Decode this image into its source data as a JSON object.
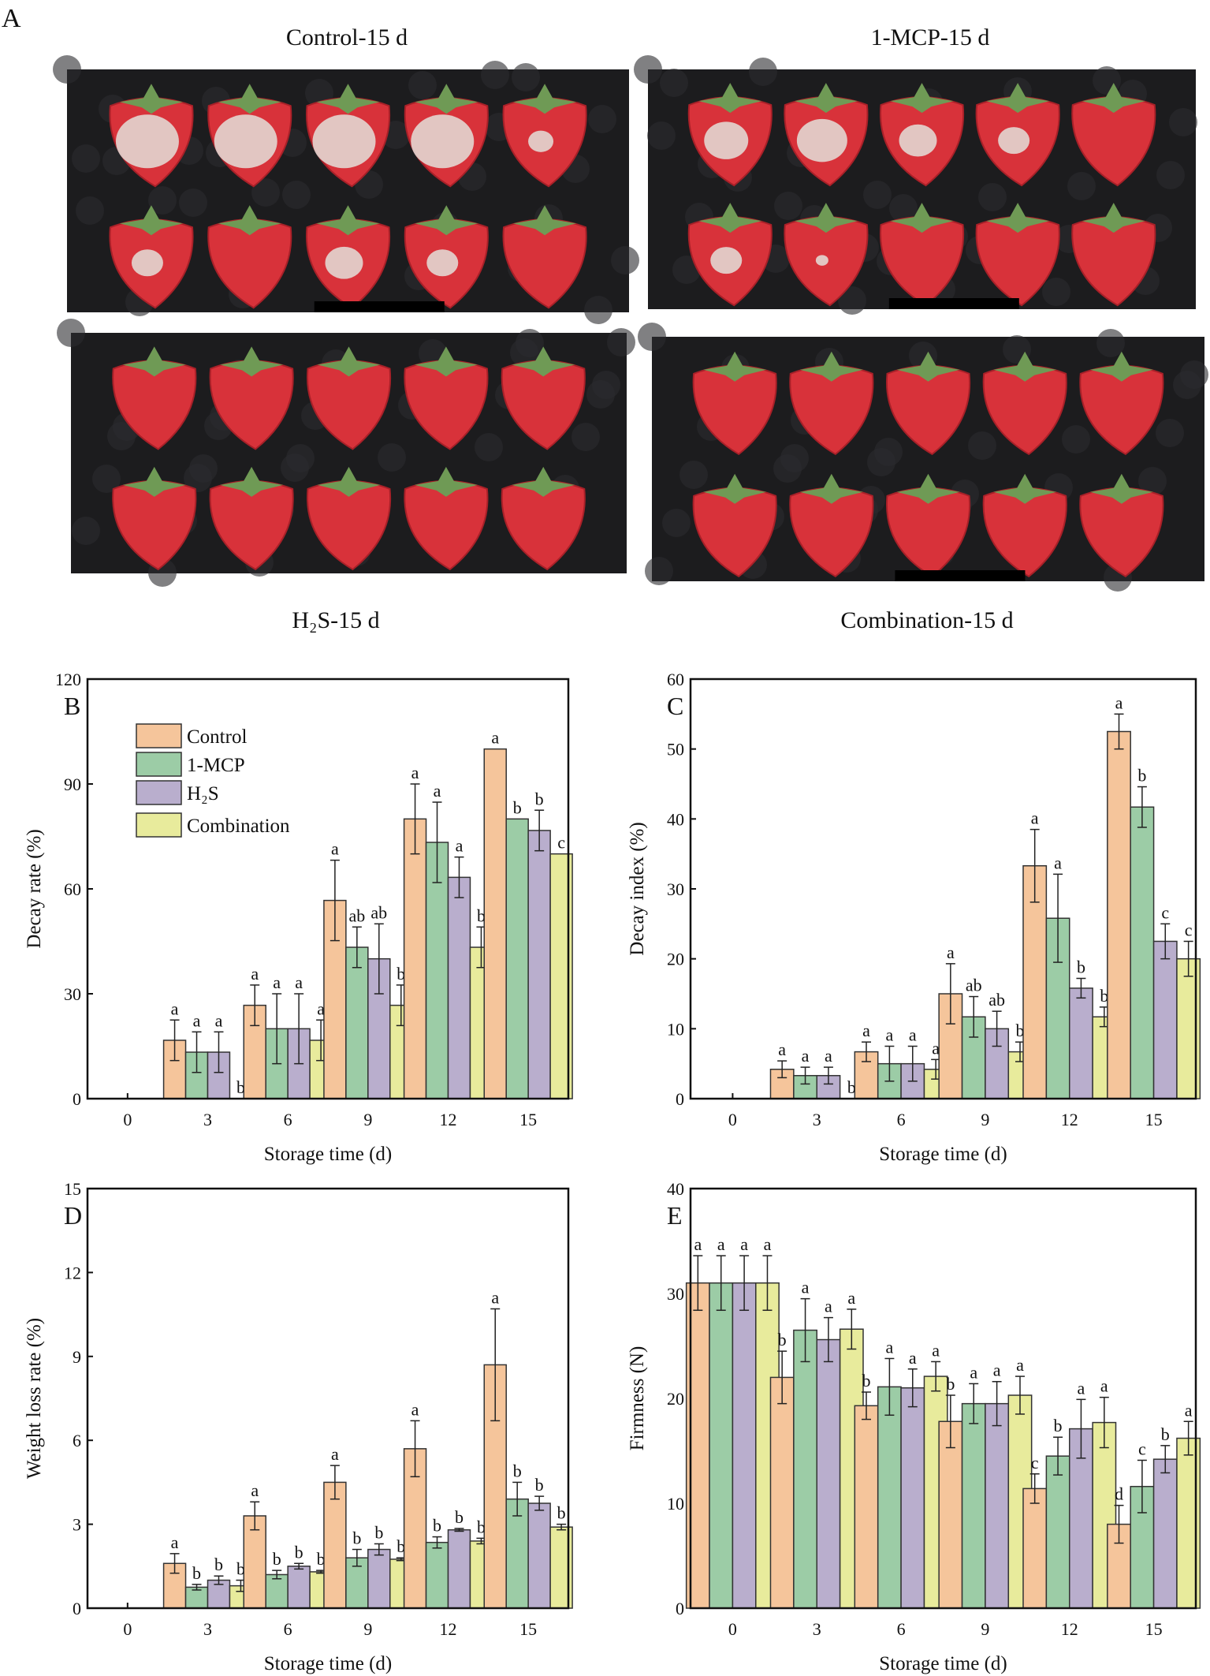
{
  "panel_a": {
    "label": "A",
    "photos": [
      {
        "title": "Control-15 d",
        "mold": [
          1,
          1,
          1,
          1,
          0.4,
          0.5,
          0,
          0.6,
          0.5,
          0
        ],
        "scale_bar": true
      },
      {
        "title": "1-MCP-15 d",
        "mold": [
          0.7,
          0.8,
          0.6,
          0.5,
          0,
          0.5,
          0.2,
          0,
          0,
          0
        ],
        "scale_bar": true
      },
      {
        "title": "H₂S-15 d",
        "mold": [
          0,
          0,
          0,
          0,
          0,
          0,
          0,
          0,
          0,
          0
        ],
        "scale_bar": false
      },
      {
        "title": "Combination-15 d",
        "mold": [
          0,
          0,
          0,
          0,
          0,
          0,
          0,
          0,
          0,
          0
        ],
        "scale_bar": true
      }
    ]
  },
  "legend": {
    "entries": [
      "Control",
      "1-MCP",
      "H₂S",
      "Combination"
    ],
    "colors": [
      "#f5c59b",
      "#9ccca6",
      "#b9aecd",
      "#e8eb9c"
    ]
  },
  "chart_data": [
    {
      "panel": "B",
      "type": "bar",
      "xlabel": "Storage time (d)",
      "ylabel": "Decay rate (%)",
      "categories": [
        "0",
        "3",
        "6",
        "9",
        "12",
        "15"
      ],
      "ylim": [
        0,
        120
      ],
      "yticks": [
        "0",
        "30",
        "60",
        "90",
        "120"
      ],
      "legend": "top-left",
      "series": [
        {
          "name": "Control",
          "values": [
            0,
            16.7,
            26.7,
            56.7,
            80,
            100
          ],
          "errors": [
            0,
            5.8,
            5.8,
            11.5,
            10,
            0
          ],
          "letters": [
            "",
            "a",
            "a",
            "a",
            "a",
            "a"
          ]
        },
        {
          "name": "1-MCP",
          "values": [
            0,
            13.3,
            20,
            43.3,
            73.3,
            80
          ],
          "errors": [
            0,
            5.8,
            10,
            5.8,
            11.5,
            0
          ],
          "letters": [
            "",
            "a",
            "a",
            "ab",
            "a",
            "b"
          ]
        },
        {
          "name": "H₂S",
          "values": [
            0,
            13.3,
            20,
            40,
            63.3,
            76.7
          ],
          "errors": [
            0,
            5.8,
            10,
            10,
            5.8,
            5.8
          ],
          "letters": [
            "",
            "a",
            "a",
            "ab",
            "a",
            "b"
          ]
        },
        {
          "name": "Combination",
          "values": [
            0,
            0,
            16.7,
            26.7,
            43.3,
            70
          ],
          "errors": [
            0,
            0,
            5.8,
            5.8,
            5.8,
            0
          ],
          "letters": [
            "",
            "b",
            "a",
            "b",
            "b",
            "c"
          ]
        }
      ]
    },
    {
      "panel": "C",
      "type": "bar",
      "xlabel": "Storage time (d)",
      "ylabel": "Decay index (%)",
      "categories": [
        "0",
        "3",
        "6",
        "9",
        "12",
        "15"
      ],
      "ylim": [
        0,
        60
      ],
      "yticks": [
        "0",
        "10",
        "20",
        "30",
        "40",
        "50",
        "60"
      ],
      "series": [
        {
          "name": "Control",
          "values": [
            0,
            4.2,
            6.7,
            15,
            33.3,
            52.5
          ],
          "errors": [
            0,
            1.2,
            1.4,
            4.3,
            5.2,
            2.5
          ],
          "letters": [
            "",
            "a",
            "a",
            "a",
            "a",
            "a"
          ]
        },
        {
          "name": "1-MCP",
          "values": [
            0,
            3.3,
            5,
            11.7,
            25.8,
            41.7
          ],
          "errors": [
            0,
            1.2,
            2.5,
            2.9,
            6.3,
            2.9
          ],
          "letters": [
            "",
            "a",
            "a",
            "ab",
            "a",
            "b"
          ]
        },
        {
          "name": "H₂S",
          "values": [
            0,
            3.3,
            5,
            10,
            15.8,
            22.5
          ],
          "errors": [
            0,
            1.2,
            2.5,
            2.5,
            1.4,
            2.5
          ],
          "letters": [
            "",
            "a",
            "a",
            "ab",
            "b",
            "c"
          ]
        },
        {
          "name": "Combination",
          "values": [
            0,
            0,
            4.2,
            6.7,
            11.7,
            20
          ],
          "errors": [
            0,
            0,
            1.4,
            1.4,
            1.4,
            2.5
          ],
          "letters": [
            "",
            "b",
            "a",
            "b",
            "b",
            "c"
          ]
        }
      ]
    },
    {
      "panel": "D",
      "type": "bar",
      "xlabel": "Storage time (d)",
      "ylabel": "Weight loss rate (%)",
      "categories": [
        "0",
        "3",
        "6",
        "9",
        "12",
        "15"
      ],
      "ylim": [
        0,
        15
      ],
      "yticks": [
        "0",
        "3",
        "6",
        "9",
        "12",
        "15"
      ],
      "series": [
        {
          "name": "Control",
          "values": [
            0,
            1.6,
            3.3,
            4.5,
            5.7,
            8.7
          ],
          "errors": [
            0,
            0.35,
            0.5,
            0.6,
            1.0,
            2.0
          ],
          "letters": [
            "",
            "a",
            "a",
            "a",
            "a",
            "a"
          ]
        },
        {
          "name": "1-MCP",
          "values": [
            0,
            0.75,
            1.2,
            1.8,
            2.35,
            3.9
          ],
          "errors": [
            0,
            0.1,
            0.15,
            0.3,
            0.2,
            0.6
          ],
          "letters": [
            "",
            "b",
            "b",
            "b",
            "b",
            "b"
          ]
        },
        {
          "name": "H₂S",
          "values": [
            0,
            1.0,
            1.5,
            2.1,
            2.8,
            3.75
          ],
          "errors": [
            0,
            0.15,
            0.1,
            0.2,
            0.05,
            0.25
          ],
          "letters": [
            "",
            "b",
            "b",
            "b",
            "b",
            "b"
          ]
        },
        {
          "name": "Combination",
          "values": [
            0,
            0.8,
            1.3,
            1.75,
            2.4,
            2.9
          ],
          "errors": [
            0,
            0.2,
            0.05,
            0.05,
            0.1,
            0.1
          ],
          "letters": [
            "",
            "b",
            "b",
            "b",
            "b",
            "b"
          ]
        }
      ]
    },
    {
      "panel": "E",
      "type": "bar",
      "xlabel": "Storage time (d)",
      "ylabel": "Firmness (N)",
      "categories": [
        "0",
        "3",
        "6",
        "9",
        "12",
        "15"
      ],
      "ylim": [
        0,
        40
      ],
      "yticks": [
        "0",
        "10",
        "20",
        "30",
        "40"
      ],
      "series": [
        {
          "name": "Control",
          "values": [
            31,
            22,
            19.3,
            17.8,
            11.4,
            8.0
          ],
          "errors": [
            2.6,
            2.5,
            1.3,
            2.5,
            1.4,
            1.8
          ],
          "letters": [
            "a",
            "b",
            "b",
            "b",
            "c",
            "d"
          ]
        },
        {
          "name": "1-MCP",
          "values": [
            31,
            26.5,
            21.1,
            19.5,
            14.5,
            11.6
          ],
          "errors": [
            2.6,
            3.0,
            2.7,
            1.9,
            1.8,
            2.5
          ],
          "letters": [
            "a",
            "a",
            "a",
            "a",
            "b",
            "c"
          ]
        },
        {
          "name": "H₂S",
          "values": [
            31,
            25.6,
            21,
            19.5,
            17.1,
            14.2
          ],
          "errors": [
            2.6,
            2.1,
            1.8,
            2.1,
            2.8,
            1.3
          ],
          "letters": [
            "a",
            "a",
            "a",
            "a",
            "a",
            "b"
          ]
        },
        {
          "name": "Combination",
          "values": [
            31,
            26.6,
            22.1,
            20.3,
            17.7,
            16.2
          ],
          "errors": [
            2.6,
            1.9,
            1.4,
            1.8,
            2.4,
            1.6
          ],
          "letters": [
            "a",
            "a",
            "a",
            "a",
            "a",
            "a"
          ]
        }
      ]
    }
  ]
}
